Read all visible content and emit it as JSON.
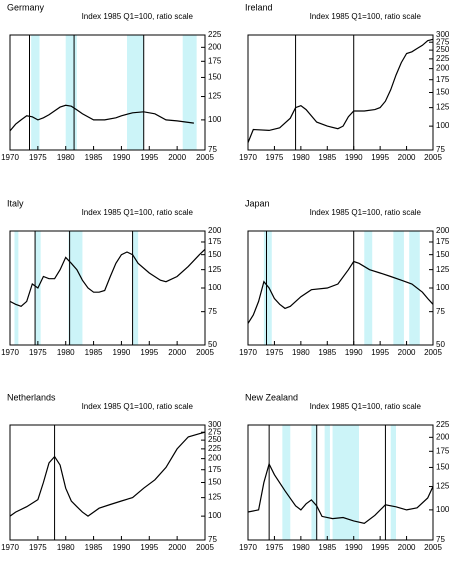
{
  "chart_data": [
    {
      "type": "line",
      "title": "Germany",
      "subtitle": "Index 1985 Q1=100, ratio scale",
      "log_scale": true,
      "color": "#000000",
      "shade_color": "#ccf4f8",
      "xlim": [
        1970,
        2005
      ],
      "xticks": [
        1970,
        1975,
        1980,
        1985,
        1990,
        1995,
        2000,
        2005
      ],
      "ylim": [
        75,
        225
      ],
      "yticks": [
        75,
        100,
        125,
        150,
        175,
        200,
        225
      ],
      "shaded": [
        [
          1973.8,
          1975.3
        ],
        [
          1980,
          1982
        ],
        [
          1991,
          1994
        ],
        [
          2001,
          2003.5
        ]
      ],
      "vlines": [
        1973.5,
        1981.5,
        1994
      ],
      "x": [
        1970,
        1971,
        1972,
        1973,
        1974,
        1975,
        1976,
        1977,
        1978,
        1979,
        1980,
        1981,
        1982,
        1983,
        1985,
        1987,
        1989,
        1990,
        1992,
        1994,
        1996,
        1998,
        2000,
        2003
      ],
      "values": [
        90,
        96,
        100,
        104,
        103,
        100,
        102,
        105,
        109,
        113,
        115,
        114,
        110,
        106,
        100,
        100,
        102,
        104,
        107,
        108,
        106,
        100,
        99,
        97
      ]
    },
    {
      "type": "line",
      "title": "Ireland",
      "subtitle": "Index 1985 Q1=100, ratio scale",
      "log_scale": true,
      "color": "#000000",
      "shade_color": "#ccf4f8",
      "xlim": [
        1970,
        2005
      ],
      "xticks": [
        1970,
        1975,
        1980,
        1985,
        1990,
        1995,
        2000,
        2005
      ],
      "ylim": [
        75,
        300
      ],
      "yticks": [
        75,
        100,
        125,
        150,
        175,
        200,
        225,
        250,
        275,
        300
      ],
      "shaded": [],
      "vlines": [
        1979,
        1990
      ],
      "x": [
        1970,
        1971,
        1974,
        1976,
        1978,
        1979,
        1980,
        1981,
        1983,
        1985,
        1987,
        1988,
        1989,
        1990,
        1992,
        1994,
        1995,
        1996,
        1997,
        1998,
        1999,
        2000,
        2001,
        2002,
        2003,
        2004,
        2005
      ],
      "values": [
        82,
        96,
        95,
        98,
        110,
        125,
        128,
        122,
        105,
        100,
        97,
        100,
        112,
        120,
        120,
        122,
        125,
        135,
        155,
        185,
        215,
        240,
        245,
        255,
        265,
        280,
        285
      ]
    },
    {
      "type": "line",
      "title": "Italy",
      "subtitle": "Index 1985 Q1=100, ratio scale",
      "log_scale": true,
      "color": "#000000",
      "shade_color": "#ccf4f8",
      "xlim": [
        1970,
        2005
      ],
      "xticks": [
        1970,
        1975,
        1980,
        1985,
        1990,
        1995,
        2000,
        2005
      ],
      "ylim": [
        50,
        200
      ],
      "yticks": [
        50,
        75,
        100,
        125,
        150,
        175,
        200
      ],
      "shaded": [
        [
          1970.8,
          1971.5
        ],
        [
          1974.5,
          1975.5
        ],
        [
          1980.5,
          1983
        ],
        [
          1992,
          1993
        ]
      ],
      "vlines": [
        1974.5,
        1980.7,
        1992
      ],
      "x": [
        1970,
        1971,
        1972,
        1973,
        1974,
        1975,
        1976,
        1977,
        1978,
        1979,
        1980,
        1981,
        1982,
        1983,
        1984,
        1985,
        1986,
        1987,
        1988,
        1989,
        1990,
        1991,
        1992,
        1993,
        1995,
        1997,
        1998,
        2000,
        2002,
        2004,
        2005
      ],
      "values": [
        85,
        82,
        80,
        85,
        105,
        100,
        115,
        112,
        112,
        125,
        145,
        135,
        125,
        110,
        100,
        95,
        95,
        97,
        115,
        135,
        150,
        155,
        150,
        135,
        120,
        110,
        108,
        115,
        130,
        150,
        160
      ]
    },
    {
      "type": "line",
      "title": "Japan",
      "subtitle": "Index 1985 Q1=100, ratio scale",
      "log_scale": true,
      "color": "#000000",
      "shade_color": "#ccf4f8",
      "xlim": [
        1970,
        2005
      ],
      "xticks": [
        1970,
        1975,
        1980,
        1985,
        1990,
        1995,
        2000,
        2005
      ],
      "ylim": [
        50,
        200
      ],
      "yticks": [
        50,
        75,
        100,
        125,
        150,
        175,
        200
      ],
      "shaded": [
        [
          1973,
          1974.5
        ],
        [
          1992,
          1993.5
        ],
        [
          1997.5,
          1999.5
        ],
        [
          2000.5,
          2002.5
        ]
      ],
      "vlines": [
        1973.5,
        1990
      ],
      "x": [
        1970,
        1971,
        1972,
        1973,
        1974,
        1975,
        1976,
        1977,
        1978,
        1980,
        1982,
        1985,
        1987,
        1989,
        1990,
        1991,
        1993,
        1995,
        1997,
        1999,
        2001,
        2003,
        2004,
        2005
      ],
      "values": [
        65,
        72,
        85,
        108,
        100,
        88,
        82,
        78,
        80,
        90,
        98,
        100,
        105,
        125,
        138,
        135,
        125,
        120,
        115,
        110,
        105,
        95,
        88,
        82
      ]
    },
    {
      "type": "line",
      "title": "Netherlands",
      "subtitle": "Index 1985 Q1=100, ratio scale",
      "log_scale": true,
      "color": "#000000",
      "shade_color": "#ccf4f8",
      "xlim": [
        1970,
        2005
      ],
      "xticks": [
        1970,
        1975,
        1980,
        1985,
        1990,
        1995,
        2000,
        2005
      ],
      "ylim": [
        75,
        300
      ],
      "yticks": [
        75,
        100,
        125,
        150,
        175,
        200,
        225,
        250,
        275,
        300
      ],
      "shaded": [],
      "vlines": [
        1978
      ],
      "x": [
        1970,
        1971,
        1973,
        1975,
        1976,
        1977,
        1978,
        1979,
        1980,
        1981,
        1982,
        1983,
        1984,
        1986,
        1988,
        1990,
        1992,
        1994,
        1996,
        1998,
        2000,
        2002,
        2004,
        2005
      ],
      "values": [
        100,
        105,
        112,
        122,
        150,
        190,
        205,
        185,
        140,
        120,
        112,
        105,
        100,
        110,
        115,
        120,
        125,
        140,
        155,
        180,
        225,
        260,
        270,
        275
      ]
    },
    {
      "type": "line",
      "title": "New Zealand",
      "subtitle": "Index 1985 Q1=100, ratio scale",
      "log_scale": true,
      "color": "#000000",
      "shade_color": "#ccf4f8",
      "xlim": [
        1970,
        2005
      ],
      "xticks": [
        1970,
        1975,
        1980,
        1985,
        1990,
        1995,
        2000,
        2005
      ],
      "ylim": [
        75,
        225
      ],
      "yticks": [
        75,
        100,
        125,
        150,
        175,
        200,
        225
      ],
      "shaded": [
        [
          1976.5,
          1978
        ],
        [
          1982,
          1983
        ],
        [
          1984.5,
          1985.5
        ],
        [
          1986,
          1991
        ],
        [
          1997,
          1998
        ]
      ],
      "vlines": [
        1974,
        1983,
        1996
      ],
      "x": [
        1970,
        1972,
        1973,
        1974,
        1975,
        1977,
        1979,
        1980,
        1981,
        1982,
        1983,
        1984,
        1986,
        1988,
        1990,
        1992,
        1994,
        1996,
        1998,
        2000,
        2002,
        2004,
        2005
      ],
      "values": [
        98,
        100,
        130,
        155,
        140,
        120,
        104,
        100,
        106,
        110,
        104,
        94,
        92,
        93,
        90,
        88,
        95,
        105,
        103,
        100,
        102,
        112,
        125
      ]
    }
  ]
}
